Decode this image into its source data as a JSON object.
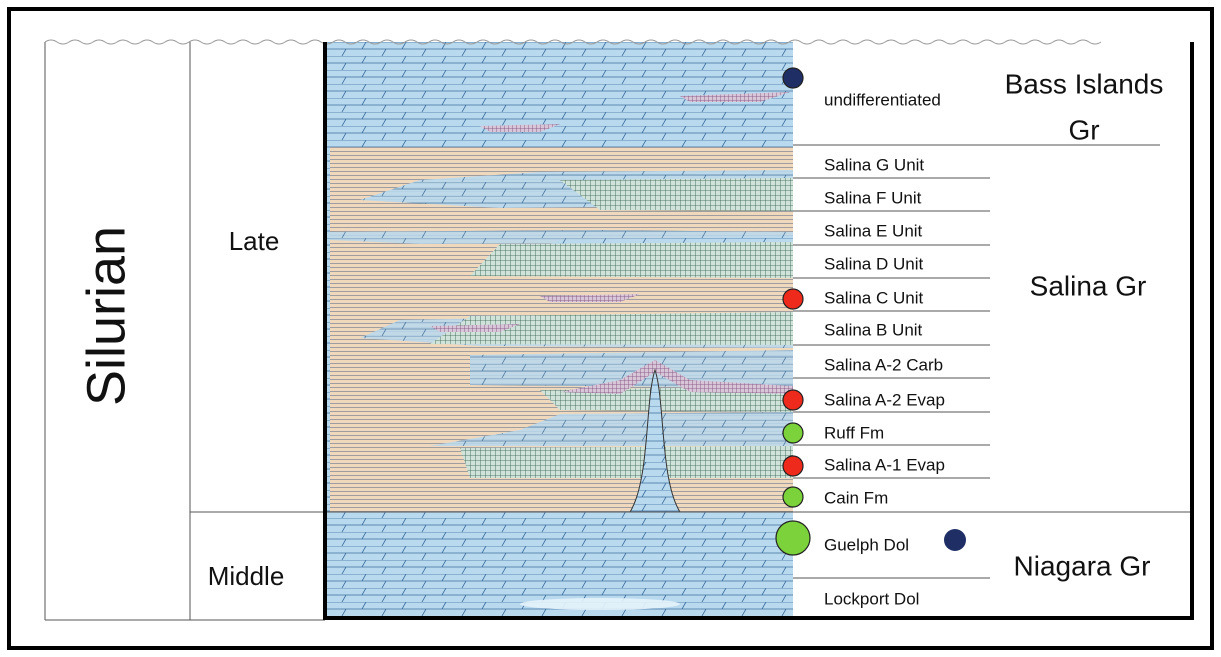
{
  "period": "Silurian",
  "epochs": [
    "Late",
    "Middle"
  ],
  "units": [
    "undifferentiated",
    "Salina G Unit",
    "Salina F Unit",
    "Salina E Unit",
    "Salina D Unit",
    "Salina C Unit",
    "Salina B Unit",
    "Salina A-2 Carb",
    "Salina A-2 Evap",
    "Ruff Fm",
    "Salina A-1 Evap",
    "Cain Fm",
    "Guelph Dol",
    "Lockport Dol"
  ],
  "groups": [
    {
      "lines": [
        "Bass Islands",
        "Gr"
      ]
    },
    {
      "lines": [
        "Salina Gr"
      ]
    },
    {
      "lines": [
        "Niagara Gr"
      ]
    }
  ]
}
